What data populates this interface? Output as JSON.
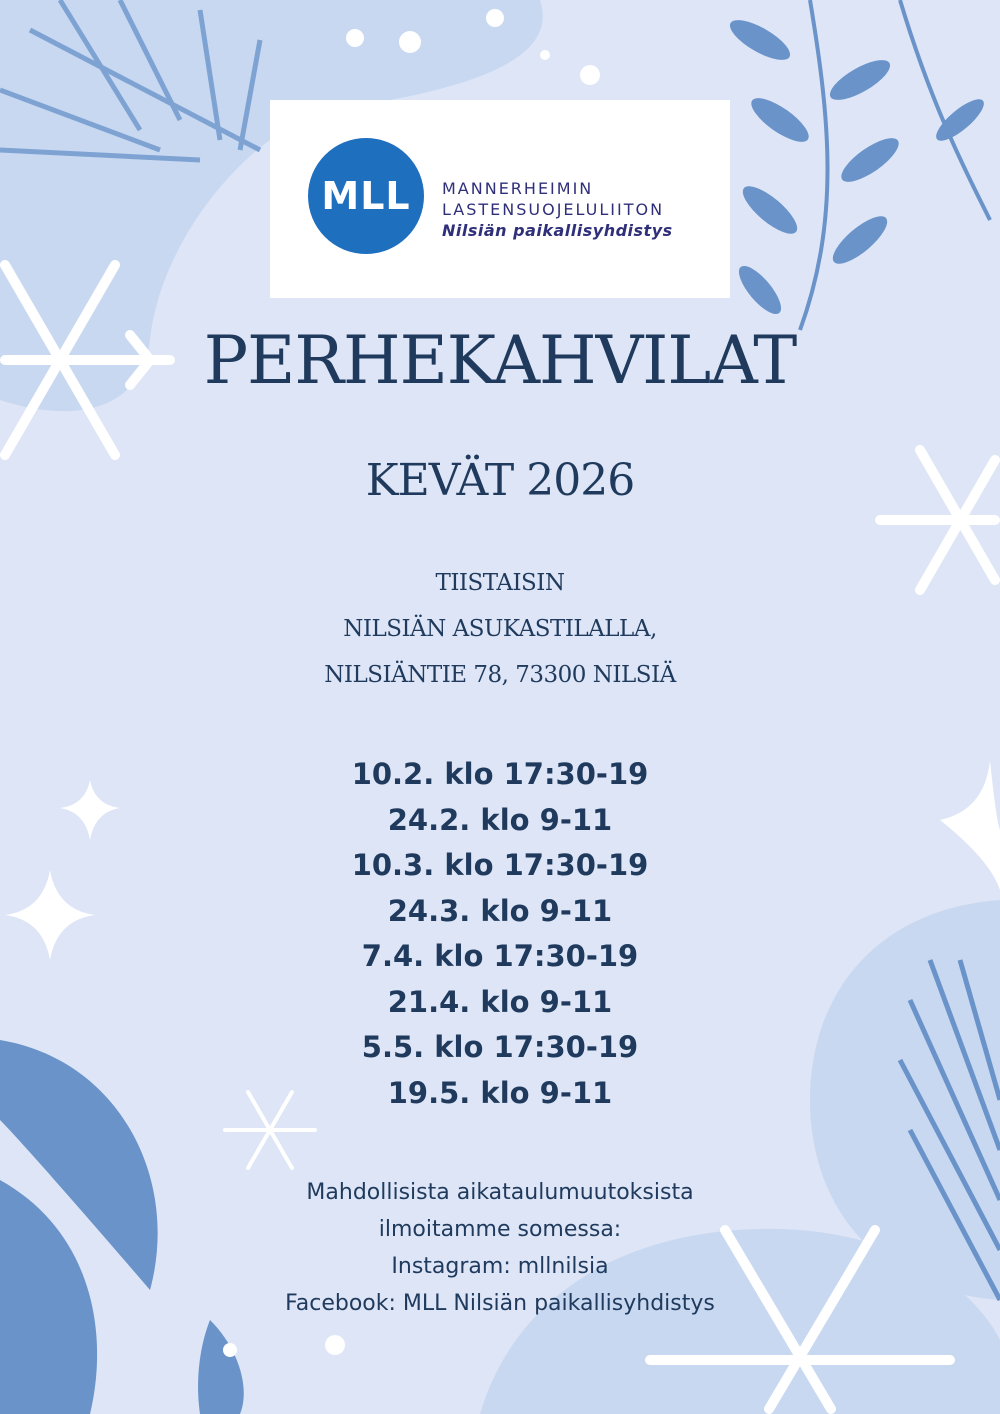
{
  "logo": {
    "mark": "MLL",
    "line1": "MANNERHEIMIN",
    "line2": "LASTENSUOJELULIITON",
    "line3": "Nilsiän paikallisyhdistys"
  },
  "title": "PERHEKAHVILAT",
  "subtitle": "KEVÄT 2026",
  "location": [
    "TIISTAISIN",
    "NILSIÄN ASUKASTILALLA,",
    "NILSIÄNTIE 78, 73300 NILSIÄ"
  ],
  "dates": [
    "10.2. klo 17:30-19",
    "24.2. klo 9-11",
    "10.3. klo 17:30-19",
    "24.3. klo 9-11",
    "7.4. klo 17:30-19",
    "21.4. klo 9-11",
    "5.5. klo 17:30-19",
    "19.5. klo 9-11"
  ],
  "info": [
    "Mahdollisista aikataulumuutoksista",
    "ilmoitamme somessa:",
    "Instagram: mllnilsia",
    "Facebook: MLL Nilsiän paikallisyhdistys"
  ],
  "colors": {
    "background": "#dde5f6",
    "blob": "#c8d8f1",
    "leaf": "#6a93c9",
    "text": "#1f3a5c",
    "logo": "#1f6fbf"
  }
}
